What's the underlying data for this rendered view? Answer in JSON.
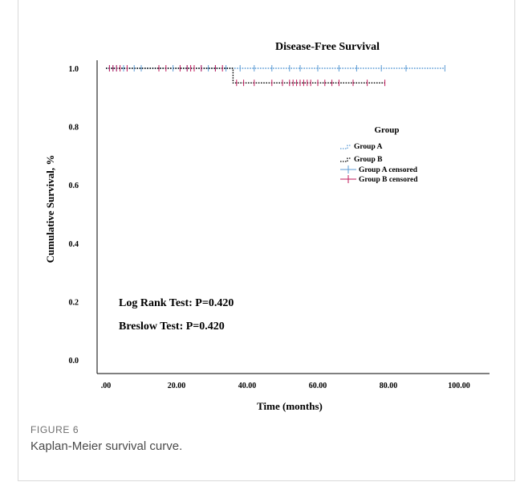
{
  "figure": {
    "label": "FIGURE 6",
    "caption": "Kaplan-Meier survival curve."
  },
  "chart_data": {
    "type": "line",
    "title": "Disease-Free Survival",
    "xlabel": "Time (months)",
    "ylabel": "Cumulative Survival, %",
    "xlim": [
      0,
      100
    ],
    "ylim": [
      0,
      1.0
    ],
    "x_ticks": [
      ".00",
      "20.00",
      "40.00",
      "60.00",
      "80.00",
      "100.00"
    ],
    "y_ticks": [
      "0.0",
      "0.2",
      "0.4",
      "0.6",
      "0.8",
      "1.0"
    ],
    "x_tick_values": [
      0,
      20,
      40,
      60,
      80,
      100
    ],
    "y_tick_values": [
      0,
      0.2,
      0.4,
      0.6,
      0.8,
      1.0
    ],
    "legend": {
      "title": "Group",
      "placement": "right",
      "entries": [
        "Group A",
        "Group B",
        "Group A censored",
        "Group B censored"
      ]
    },
    "series": [
      {
        "name": "Group A",
        "color": "#5b9bd5",
        "style": "dotted",
        "steps": [
          [
            0,
            1.0
          ],
          [
            96,
            1.0
          ]
        ],
        "censored": [
          1,
          2,
          3,
          5,
          8,
          10,
          15,
          19,
          23,
          27,
          29,
          31,
          34,
          38,
          42,
          47,
          52,
          55,
          60,
          66,
          71,
          78,
          85,
          96
        ]
      },
      {
        "name": "Group B",
        "color": "#000000",
        "style": "dotted",
        "steps": [
          [
            0,
            1.0
          ],
          [
            36,
            1.0
          ],
          [
            36,
            0.95
          ],
          [
            79,
            0.95
          ]
        ],
        "censored": [
          1,
          2,
          3,
          4,
          6,
          15,
          17,
          21,
          23,
          24,
          25,
          27,
          31,
          33,
          37,
          39,
          42,
          47,
          50,
          52,
          53,
          54,
          55,
          56,
          57,
          58,
          60,
          62,
          64,
          66,
          70,
          74,
          79
        ]
      }
    ],
    "censor_colors": {
      "Group A censored": "#5b9bd5",
      "Group B censored": "#c2185b"
    },
    "annotations": [
      "Log Rank Test: P=0.420",
      "Breslow Test: P=0.420"
    ]
  }
}
